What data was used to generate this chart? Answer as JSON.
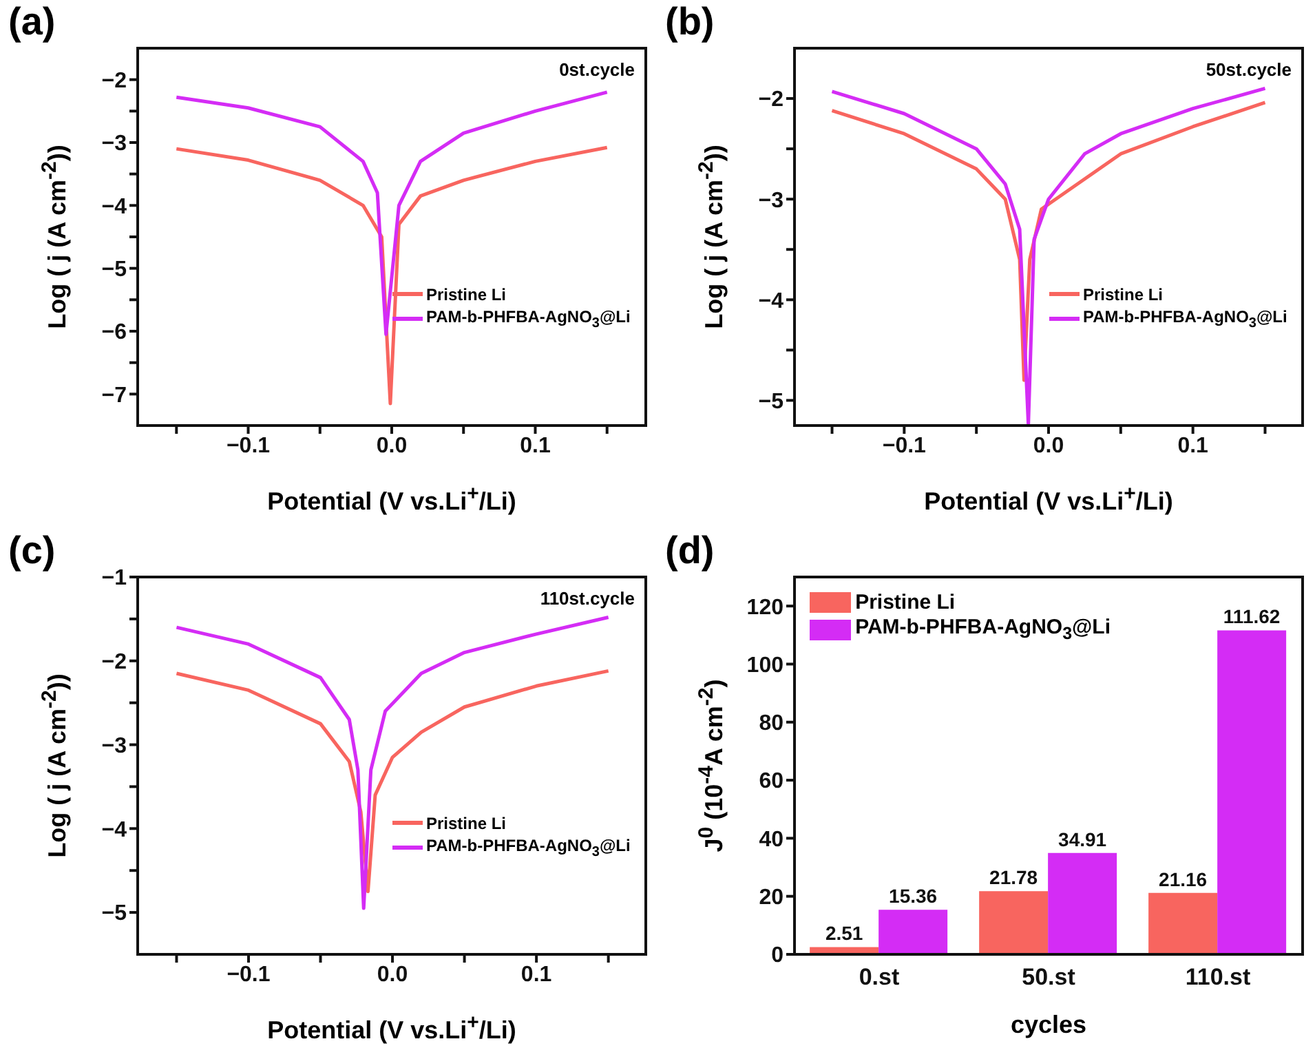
{
  "chart_data": [
    {
      "type": "line",
      "title": "(a)",
      "xlabel": "Potential (V vs.Li$^{+}$/Li)",
      "ylabel": "Log ( j (A cm$^{-2}$))",
      "annotations": [
        "0st.cycle"
      ],
      "legend": "right",
      "xlim": [
        -0.177,
        0.177
      ],
      "ylim": [
        -7.5,
        -1.5
      ],
      "xticks": [
        {
          "value": -0.15,
          "label": null
        },
        {
          "value": -0.1,
          "label": "−0.1"
        },
        {
          "value": -0.05,
          "label": null
        },
        {
          "value": 0,
          "label": "0.0"
        },
        {
          "value": 0.05,
          "label": null
        },
        {
          "value": 0.1,
          "label": "0.1"
        },
        {
          "value": 0.15,
          "label": null
        }
      ],
      "yticks": [
        {
          "value": -7,
          "label": "−7"
        },
        {
          "value": -6.5,
          "label": null
        },
        {
          "value": -6,
          "label": "−6"
        },
        {
          "value": -5.5,
          "label": null
        },
        {
          "value": -5,
          "label": "−5"
        },
        {
          "value": -4.5,
          "label": null
        },
        {
          "value": -4,
          "label": "−4"
        },
        {
          "value": -3.5,
          "label": null
        },
        {
          "value": -3,
          "label": "−3"
        },
        {
          "value": -2.5,
          "label": null
        },
        {
          "value": -2,
          "label": "−2"
        }
      ],
      "series": [
        {
          "name": "Pristine Li",
          "color": "#f8655f",
          "x": [
            -0.15,
            -0.1,
            -0.05,
            -0.02,
            -0.007,
            -0.001,
            0.005,
            0.02,
            0.05,
            0.1,
            0.15
          ],
          "values": [
            -3.1,
            -3.28,
            -3.6,
            -4.0,
            -4.5,
            -7.15,
            -4.3,
            -3.85,
            -3.6,
            -3.3,
            -3.08
          ]
        },
        {
          "name": "PAM-b-PHFBA-AgNO$_{3}$@Li",
          "color": "#d42cf5",
          "x": [
            -0.15,
            -0.1,
            -0.05,
            -0.02,
            -0.01,
            -0.004,
            0.005,
            0.02,
            0.05,
            0.1,
            0.15
          ],
          "values": [
            -2.28,
            -2.45,
            -2.75,
            -3.3,
            -3.8,
            -6.05,
            -4.0,
            -3.3,
            -2.85,
            -2.5,
            -2.2
          ]
        }
      ]
    },
    {
      "type": "line",
      "title": "(b)",
      "xlabel": "Potential (V vs.Li$^{+}$/Li)",
      "ylabel": "Log ( j (A cm$^{-2}$))",
      "annotations": [
        "50st.cycle"
      ],
      "legend": "right",
      "xlim": [
        -0.176,
        0.176
      ],
      "ylim": [
        -5.25,
        -1.5
      ],
      "xticks": [
        {
          "value": -0.15,
          "label": null
        },
        {
          "value": -0.1,
          "label": "−0.1"
        },
        {
          "value": -0.05,
          "label": null
        },
        {
          "value": 0,
          "label": "0.0"
        },
        {
          "value": 0.05,
          "label": null
        },
        {
          "value": 0.1,
          "label": "0.1"
        },
        {
          "value": 0.15,
          "label": null
        }
      ],
      "yticks": [
        {
          "value": -5,
          "label": "−5"
        },
        {
          "value": -4.5,
          "label": null
        },
        {
          "value": -4,
          "label": "−4"
        },
        {
          "value": -3.5,
          "label": null
        },
        {
          "value": -3,
          "label": "−3"
        },
        {
          "value": -2.5,
          "label": null
        },
        {
          "value": -2,
          "label": "−2"
        }
      ],
      "series": [
        {
          "name": "Pristine Li",
          "color": "#f8655f",
          "x": [
            -0.15,
            -0.1,
            -0.05,
            -0.03,
            -0.02,
            -0.017,
            -0.013,
            -0.005,
            0.02,
            0.05,
            0.1,
            0.15
          ],
          "values": [
            -2.12,
            -2.35,
            -2.7,
            -3.0,
            -3.6,
            -4.8,
            -3.6,
            -3.1,
            -2.85,
            -2.55,
            -2.28,
            -2.04
          ]
        },
        {
          "name": "PAM-b-PHFBA-AgNO$_{3}$@Li",
          "color": "#d42cf5",
          "x": [
            -0.15,
            -0.1,
            -0.05,
            -0.03,
            -0.02,
            -0.014,
            -0.01,
            0,
            0.025,
            0.05,
            0.1,
            0.15
          ],
          "values": [
            -1.93,
            -2.15,
            -2.5,
            -2.85,
            -3.3,
            -5.24,
            -3.4,
            -3.0,
            -2.55,
            -2.35,
            -2.1,
            -1.9
          ]
        }
      ]
    },
    {
      "type": "line",
      "title": "(c)",
      "xlabel": "Potential (V vs.Li$^{+}$/Li)",
      "ylabel": "Log ( j (A cm$^{-2}$))",
      "annotations": [
        "110st.cycle"
      ],
      "legend": "right",
      "xlim": [
        -0.177,
        0.176
      ],
      "ylim": [
        -5.5,
        -1
      ],
      "xticks": [
        {
          "value": -0.15,
          "label": null
        },
        {
          "value": -0.1,
          "label": "−0.1"
        },
        {
          "value": -0.05,
          "label": null
        },
        {
          "value": 0,
          "label": "0.0"
        },
        {
          "value": 0.05,
          "label": null
        },
        {
          "value": 0.1,
          "label": "0.1"
        },
        {
          "value": 0.15,
          "label": null
        }
      ],
      "yticks": [
        {
          "value": -5,
          "label": "−5"
        },
        {
          "value": -4.5,
          "label": null
        },
        {
          "value": -4,
          "label": "−4"
        },
        {
          "value": -3.5,
          "label": null
        },
        {
          "value": -3,
          "label": "−3"
        },
        {
          "value": -2.5,
          "label": null
        },
        {
          "value": -2,
          "label": "−2"
        },
        {
          "value": -1.5,
          "label": null
        },
        {
          "value": -1,
          "label": "−1"
        }
      ],
      "series": [
        {
          "name": "Pristine Li",
          "color": "#f8655f",
          "x": [
            -0.15,
            -0.1,
            -0.05,
            -0.03,
            -0.022,
            -0.017,
            -0.012,
            0,
            0.02,
            0.05,
            0.1,
            0.15
          ],
          "values": [
            -2.15,
            -2.35,
            -2.75,
            -3.2,
            -3.8,
            -4.75,
            -3.6,
            -3.15,
            -2.85,
            -2.55,
            -2.3,
            -2.12
          ]
        },
        {
          "name": "PAM-b-PHFBA-AgNO$_{3}$@Li",
          "color": "#d42cf5",
          "x": [
            -0.15,
            -0.1,
            -0.05,
            -0.03,
            -0.024,
            -0.02,
            -0.015,
            -0.005,
            0.02,
            0.05,
            0.1,
            0.15
          ],
          "values": [
            -1.6,
            -1.8,
            -2.2,
            -2.7,
            -3.3,
            -4.95,
            -3.3,
            -2.6,
            -2.15,
            -1.9,
            -1.68,
            -1.48
          ]
        }
      ]
    },
    {
      "type": "bar",
      "title": "(d)",
      "xlabel": "cycles",
      "ylabel": "J$^{0}$ (10$^{-4}$A cm$^{-2}$)",
      "legend": "top left",
      "data_labels": true,
      "categories": [
        "0.st",
        "50.st",
        "110.st"
      ],
      "ylim": [
        0,
        130
      ],
      "yticks": [
        0,
        20,
        40,
        60,
        80,
        100,
        120
      ],
      "series": [
        {
          "name": "Pristine Li",
          "color": "#f8655f",
          "values": [
            2.51,
            21.78,
            21.16
          ]
        },
        {
          "name": "PAM-b-PHFBA-AgNO$_{3}$@Li",
          "color": "#d42cf5",
          "values": [
            15.36,
            34.91,
            111.62
          ]
        }
      ]
    }
  ]
}
